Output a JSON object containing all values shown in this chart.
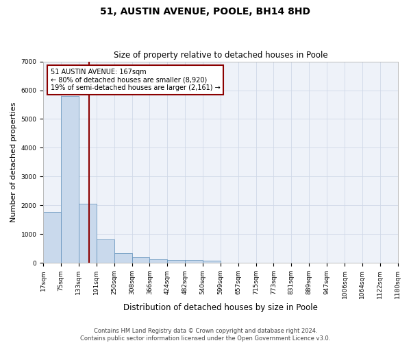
{
  "title": "51, AUSTIN AVENUE, POOLE, BH14 8HD",
  "subtitle": "Size of property relative to detached houses in Poole",
  "xlabel": "Distribution of detached houses by size in Poole",
  "ylabel": "Number of detached properties",
  "property_size": 167,
  "property_label": "51 AUSTIN AVENUE: 167sqm",
  "pct_smaller": 80,
  "n_smaller": 8920,
  "pct_larger_semi": 19,
  "n_larger_semi": 2161,
  "bar_color": "#c9d9ec",
  "bar_edge_color": "#5b8db8",
  "vline_color": "#8b0000",
  "annotation_box_color": "#8b0000",
  "grid_color": "#d0d8e8",
  "bg_color": "#eef2f9",
  "footer_line1": "Contains HM Land Registry data © Crown copyright and database right 2024.",
  "footer_line2": "Contains public sector information licensed under the Open Government Licence v3.0.",
  "bin_edges": [
    17,
    75,
    133,
    191,
    250,
    308,
    366,
    424,
    482,
    540,
    599,
    657,
    715,
    773,
    831,
    889,
    947,
    1006,
    1064,
    1122,
    1180
  ],
  "bin_counts": [
    1780,
    5800,
    2050,
    820,
    340,
    185,
    115,
    105,
    95,
    75,
    0,
    0,
    0,
    0,
    0,
    0,
    0,
    0,
    0,
    0
  ],
  "ylim": [
    0,
    7000
  ],
  "title_fontsize": 10,
  "subtitle_fontsize": 8.5,
  "axis_label_fontsize": 8,
  "tick_fontsize": 6.5,
  "footer_fontsize": 6,
  "ann_fontsize": 7
}
